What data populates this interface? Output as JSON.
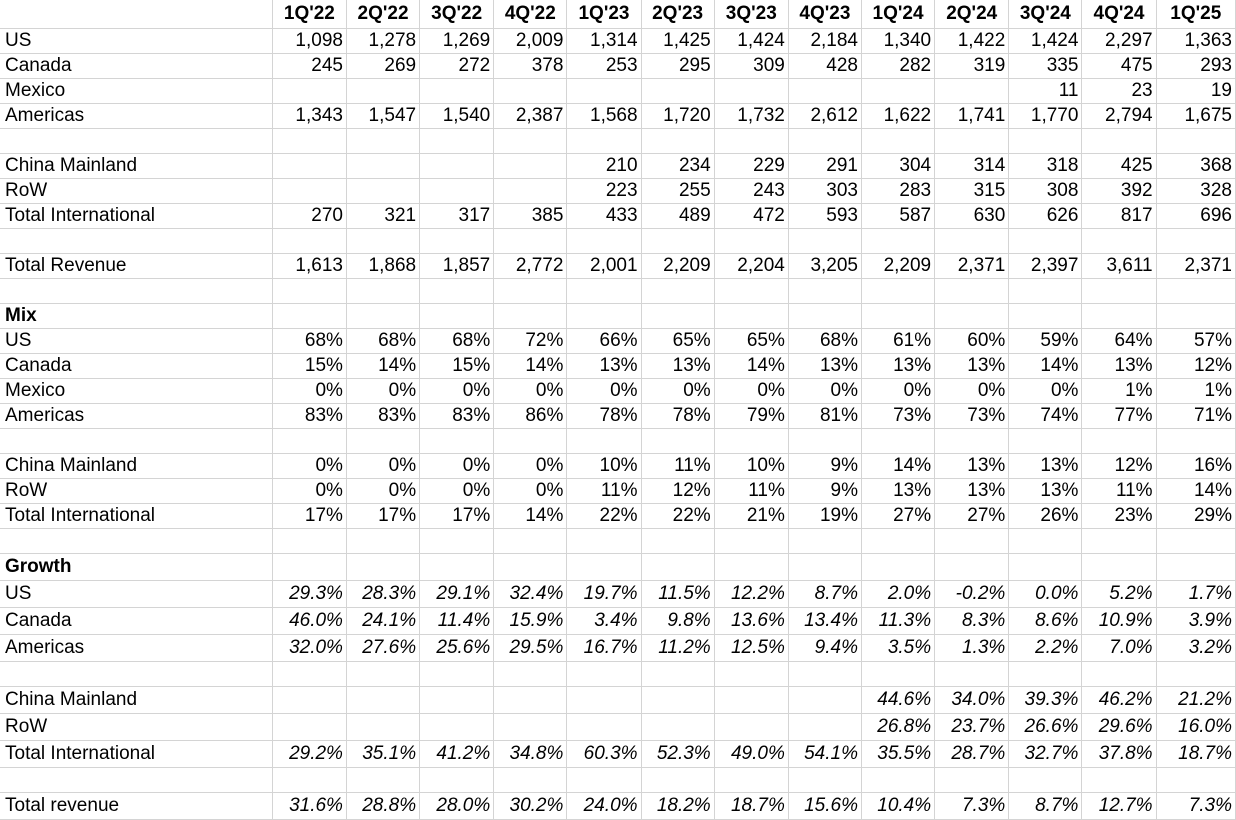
{
  "header": {
    "columns": [
      "1Q'22",
      "2Q'22",
      "3Q'22",
      "4Q'22",
      "1Q'23",
      "2Q'23",
      "3Q'23",
      "4Q'23",
      "1Q'24",
      "2Q'24",
      "3Q'24",
      "4Q'24",
      "1Q'25"
    ]
  },
  "revenue": {
    "us": {
      "label": "US",
      "values": [
        "1,098",
        "1,278",
        "1,269",
        "2,009",
        "1,314",
        "1,425",
        "1,424",
        "2,184",
        "1,340",
        "1,422",
        "1,424",
        "2,297",
        "1,363"
      ]
    },
    "canada": {
      "label": "Canada",
      "values": [
        "245",
        "269",
        "272",
        "378",
        "253",
        "295",
        "309",
        "428",
        "282",
        "319",
        "335",
        "475",
        "293"
      ]
    },
    "mexico": {
      "label": "Mexico",
      "values": [
        "",
        "",
        "",
        "",
        "",
        "",
        "",
        "",
        "",
        "",
        "11",
        "23",
        "19"
      ]
    },
    "americas": {
      "label": "Americas",
      "values": [
        "1,343",
        "1,547",
        "1,540",
        "2,387",
        "1,568",
        "1,720",
        "1,732",
        "2,612",
        "1,622",
        "1,741",
        "1,770",
        "2,794",
        "1,675"
      ]
    },
    "china": {
      "label": "China Mainland",
      "values": [
        "",
        "",
        "",
        "",
        "210",
        "234",
        "229",
        "291",
        "304",
        "314",
        "318",
        "425",
        "368"
      ]
    },
    "row": {
      "label": "RoW",
      "values": [
        "",
        "",
        "",
        "",
        "223",
        "255",
        "243",
        "303",
        "283",
        "315",
        "308",
        "392",
        "328"
      ]
    },
    "intl": {
      "label": "Total International",
      "values": [
        "270",
        "321",
        "317",
        "385",
        "433",
        "489",
        "472",
        "593",
        "587",
        "630",
        "626",
        "817",
        "696"
      ]
    },
    "total": {
      "label": "Total Revenue",
      "values": [
        "1,613",
        "1,868",
        "1,857",
        "2,772",
        "2,001",
        "2,209",
        "2,204",
        "3,205",
        "2,209",
        "2,371",
        "2,397",
        "3,611",
        "2,371"
      ]
    }
  },
  "mix": {
    "title": "Mix",
    "us": {
      "label": "US",
      "values": [
        "68%",
        "68%",
        "68%",
        "72%",
        "66%",
        "65%",
        "65%",
        "68%",
        "61%",
        "60%",
        "59%",
        "64%",
        "57%"
      ]
    },
    "canada": {
      "label": "Canada",
      "values": [
        "15%",
        "14%",
        "15%",
        "14%",
        "13%",
        "13%",
        "14%",
        "13%",
        "13%",
        "13%",
        "14%",
        "13%",
        "12%"
      ]
    },
    "mexico": {
      "label": "Mexico",
      "values": [
        "0%",
        "0%",
        "0%",
        "0%",
        "0%",
        "0%",
        "0%",
        "0%",
        "0%",
        "0%",
        "0%",
        "1%",
        "1%"
      ]
    },
    "americas": {
      "label": "Americas",
      "values": [
        "83%",
        "83%",
        "83%",
        "86%",
        "78%",
        "78%",
        "79%",
        "81%",
        "73%",
        "73%",
        "74%",
        "77%",
        "71%"
      ]
    },
    "china": {
      "label": "China Mainland",
      "values": [
        "0%",
        "0%",
        "0%",
        "0%",
        "10%",
        "11%",
        "10%",
        "9%",
        "14%",
        "13%",
        "13%",
        "12%",
        "16%"
      ]
    },
    "row": {
      "label": "RoW",
      "values": [
        "0%",
        "0%",
        "0%",
        "0%",
        "11%",
        "12%",
        "11%",
        "9%",
        "13%",
        "13%",
        "13%",
        "11%",
        "14%"
      ]
    },
    "intl": {
      "label": "Total International",
      "values": [
        "17%",
        "17%",
        "17%",
        "14%",
        "22%",
        "22%",
        "21%",
        "19%",
        "27%",
        "27%",
        "26%",
        "23%",
        "29%"
      ]
    }
  },
  "growth": {
    "title": "Growth",
    "us": {
      "label": "US",
      "values": [
        "29.3%",
        "28.3%",
        "29.1%",
        "32.4%",
        "19.7%",
        "11.5%",
        "12.2%",
        "8.7%",
        "2.0%",
        "-0.2%",
        "0.0%",
        "5.2%",
        "1.7%"
      ]
    },
    "canada": {
      "label": "Canada",
      "values": [
        "46.0%",
        "24.1%",
        "11.4%",
        "15.9%",
        "3.4%",
        "9.8%",
        "13.6%",
        "13.4%",
        "11.3%",
        "8.3%",
        "8.6%",
        "10.9%",
        "3.9%"
      ]
    },
    "americas": {
      "label": "Americas",
      "values": [
        "32.0%",
        "27.6%",
        "25.6%",
        "29.5%",
        "16.7%",
        "11.2%",
        "12.5%",
        "9.4%",
        "3.5%",
        "1.3%",
        "2.2%",
        "7.0%",
        "3.2%"
      ]
    },
    "china": {
      "label": "China Mainland",
      "values": [
        "",
        "",
        "",
        "",
        "",
        "",
        "",
        "",
        "44.6%",
        "34.0%",
        "39.3%",
        "46.2%",
        "21.2%"
      ]
    },
    "row": {
      "label": "RoW",
      "values": [
        "",
        "",
        "",
        "",
        "",
        "",
        "",
        "",
        "26.8%",
        "23.7%",
        "26.6%",
        "29.6%",
        "16.0%"
      ]
    },
    "intl": {
      "label": "Total International",
      "values": [
        "29.2%",
        "35.1%",
        "41.2%",
        "34.8%",
        "60.3%",
        "52.3%",
        "49.0%",
        "54.1%",
        "35.5%",
        "28.7%",
        "32.7%",
        "37.8%",
        "18.7%"
      ]
    },
    "total": {
      "label": "Total revenue",
      "values": [
        "31.6%",
        "28.8%",
        "28.0%",
        "30.2%",
        "24.0%",
        "18.2%",
        "18.7%",
        "15.6%",
        "10.4%",
        "7.3%",
        "8.7%",
        "12.7%",
        "7.3%"
      ]
    }
  }
}
